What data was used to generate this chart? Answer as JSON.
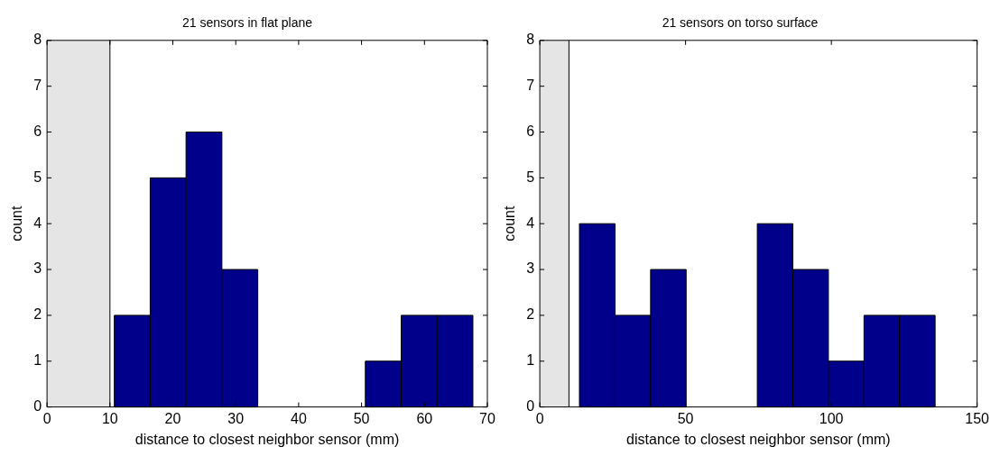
{
  "chart_data": [
    {
      "type": "histogram",
      "title": "21 sensors in flat plane",
      "xlabel": "distance to closest neighbor sensor (mm)",
      "ylabel": "count",
      "color": "#00008b",
      "bins": [
        10.7,
        16.4,
        22.1,
        27.8,
        33.5,
        39.2,
        44.9,
        50.6,
        56.3,
        62.0,
        67.7
      ],
      "ref_lines": [
        {
          "axis": "x",
          "value": 10,
          "color": "#000000"
        }
      ],
      "values": [
        2,
        5,
        6,
        3,
        0,
        0,
        0,
        1,
        2,
        2
      ],
      "xlim": [
        0,
        70
      ],
      "xticks": [
        0,
        10,
        20,
        30,
        40,
        50,
        60,
        70
      ],
      "ylim": [
        0,
        8
      ],
      "yticks": [
        0,
        1,
        2,
        3,
        4,
        5,
        6,
        7,
        8
      ],
      "grid": false,
      "bands": [
        {
          "axis": "x",
          "from": 0,
          "to": 10,
          "color": "#e5e5e5"
        }
      ]
    },
    {
      "type": "histogram",
      "title": "21 sensors on torso surface",
      "xlabel": "distance to closest neighbor sensor (mm)",
      "ylabel": "count",
      "color": "#00008b",
      "bins": [
        13.6,
        25.8,
        38.0,
        50.2,
        62.4,
        74.6,
        86.8,
        99.0,
        111.2,
        123.4,
        135.6
      ],
      "ref_lines": [
        {
          "axis": "x",
          "value": 10,
          "color": "#000000"
        }
      ],
      "values": [
        4,
        2,
        3,
        0,
        0,
        4,
        3,
        1,
        2,
        2
      ],
      "xlim": [
        0,
        150
      ],
      "xticks": [
        0,
        50,
        100,
        150
      ],
      "ylim": [
        0,
        8
      ],
      "yticks": [
        0,
        1,
        2,
        3,
        4,
        5,
        6,
        7,
        8
      ],
      "grid": false,
      "bands": [
        {
          "axis": "x",
          "from": 0,
          "to": 10,
          "color": "#e5e5e5"
        }
      ]
    }
  ]
}
